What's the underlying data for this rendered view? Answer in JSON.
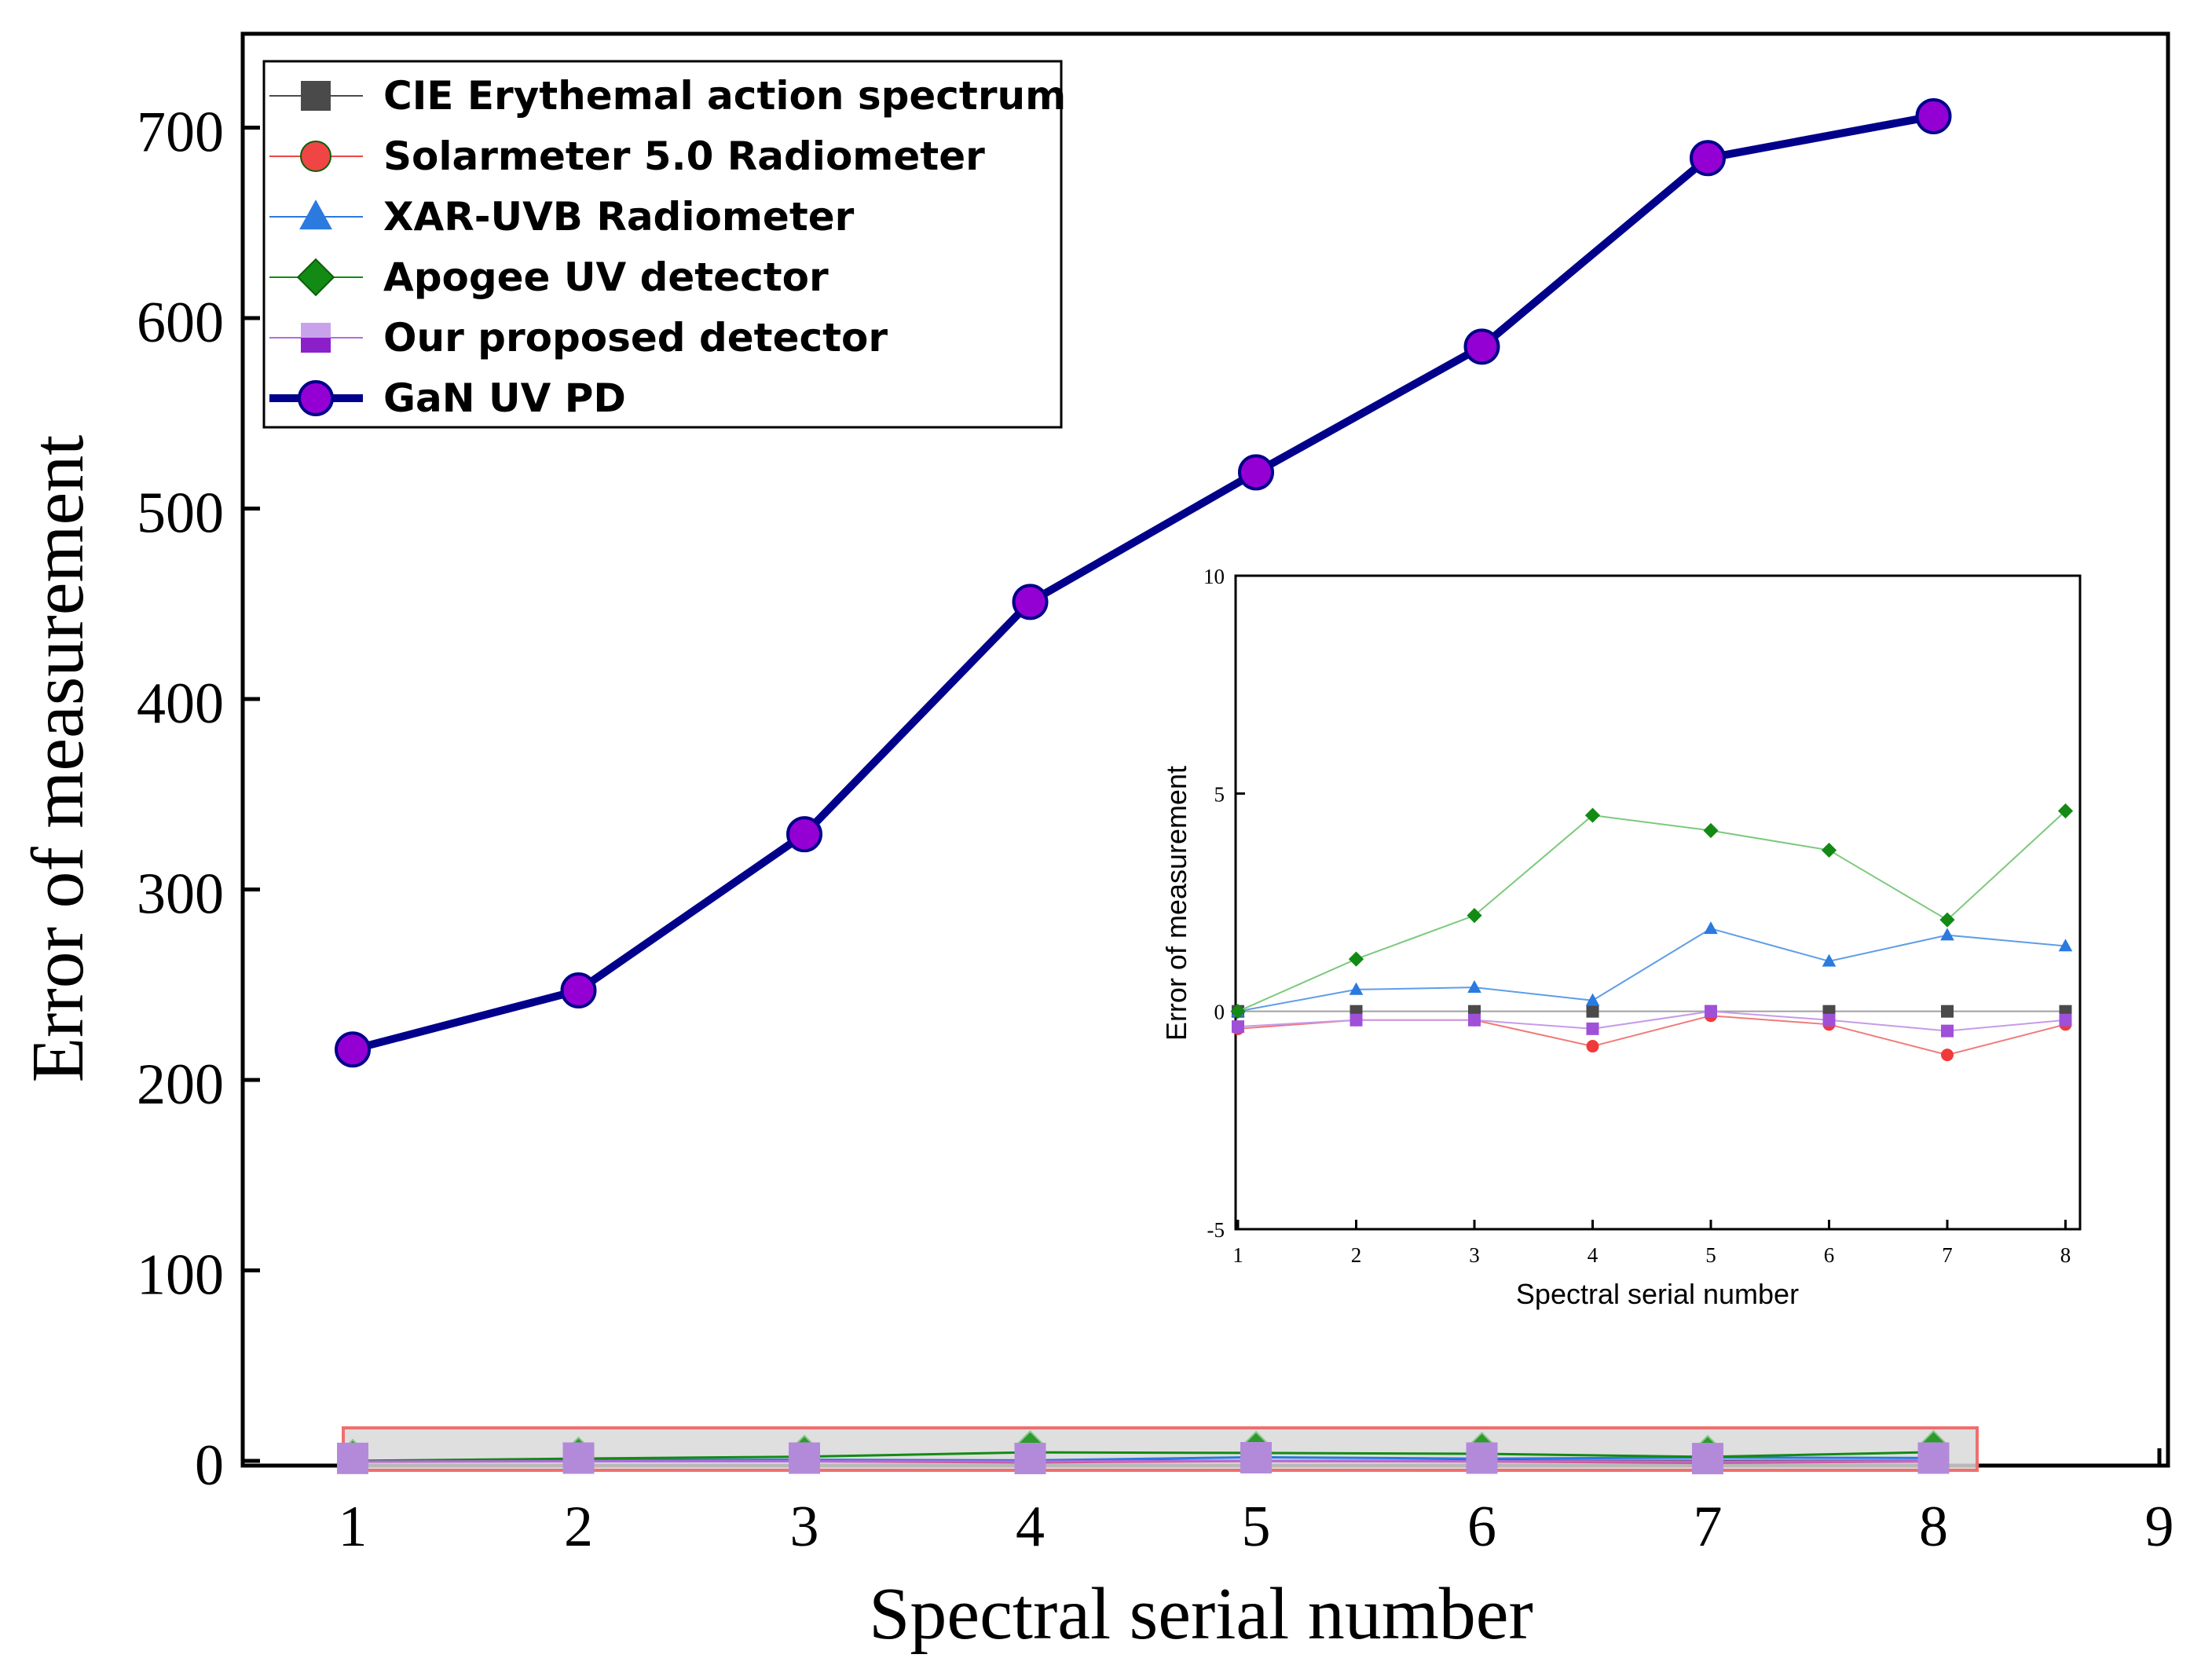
{
  "chart_data": [
    {
      "type": "line",
      "id": "main",
      "title": "",
      "xlabel": "Spectral serial number",
      "ylabel": "Error of measurement",
      "xlim": [
        0.5,
        9.0
      ],
      "ylim": [
        0,
        750
      ],
      "x_ticks": [
        1,
        2,
        3,
        4,
        5,
        6,
        7,
        8,
        9
      ],
      "y_ticks": [
        0,
        100,
        200,
        300,
        400,
        500,
        600,
        700
      ],
      "legend_position": "top-left",
      "x": [
        1,
        2,
        3,
        4,
        5,
        6,
        7,
        8
      ],
      "series": [
        {
          "name": "CIE Erythemal action spectrum",
          "color": "#4a4a4a",
          "marker": "square",
          "values": [
            0,
            0,
            0,
            0,
            0,
            0,
            0,
            0
          ]
        },
        {
          "name": "Solarmeter 5.0 Radiometer",
          "color": "#f04545",
          "marker": "circle",
          "values": [
            -0.4,
            -0.2,
            -0.2,
            -0.8,
            -0.1,
            -0.3,
            -1.0,
            -0.3
          ]
        },
        {
          "name": "XAR-UVB Radiometer",
          "color": "#2a7ae0",
          "marker": "triangle",
          "values": [
            0,
            0.5,
            0.55,
            0.25,
            1.9,
            1.15,
            1.75,
            1.5
          ]
        },
        {
          "name": "Apogee UV detector",
          "color": "#138a13",
          "marker": "diamond",
          "values": [
            0,
            1.2,
            2.2,
            4.5,
            4.15,
            3.7,
            2.1,
            4.6
          ]
        },
        {
          "name": "Our proposed detector",
          "color": "#b36bde",
          "marker": "square-half",
          "values": [
            -0.35,
            -0.2,
            -0.2,
            -0.4,
            0,
            -0.2,
            -0.45,
            -0.2
          ]
        },
        {
          "name": "GaN UV PD",
          "color": "#00008b",
          "marker_color": "#9400d3",
          "marker": "circle",
          "values": [
            216,
            247,
            329,
            451,
            519,
            585,
            684,
            706
          ]
        }
      ]
    },
    {
      "type": "line",
      "id": "inset",
      "title": "",
      "xlabel": "Spectral serial number",
      "ylabel": "Error of measurement",
      "xlim": [
        0.95,
        8.2
      ],
      "ylim": [
        -5,
        10
      ],
      "x_ticks": [
        1,
        2,
        3,
        4,
        5,
        6,
        7,
        8
      ],
      "y_ticks": [
        -5,
        0,
        5,
        10
      ],
      "x": [
        1,
        2,
        3,
        4,
        5,
        6,
        7,
        8
      ],
      "series_ref": [
        "CIE Erythemal action spectrum",
        "Solarmeter 5.0 Radiometer",
        "XAR-UVB Radiometer",
        "Apogee UV detector",
        "Our proposed detector"
      ]
    }
  ]
}
